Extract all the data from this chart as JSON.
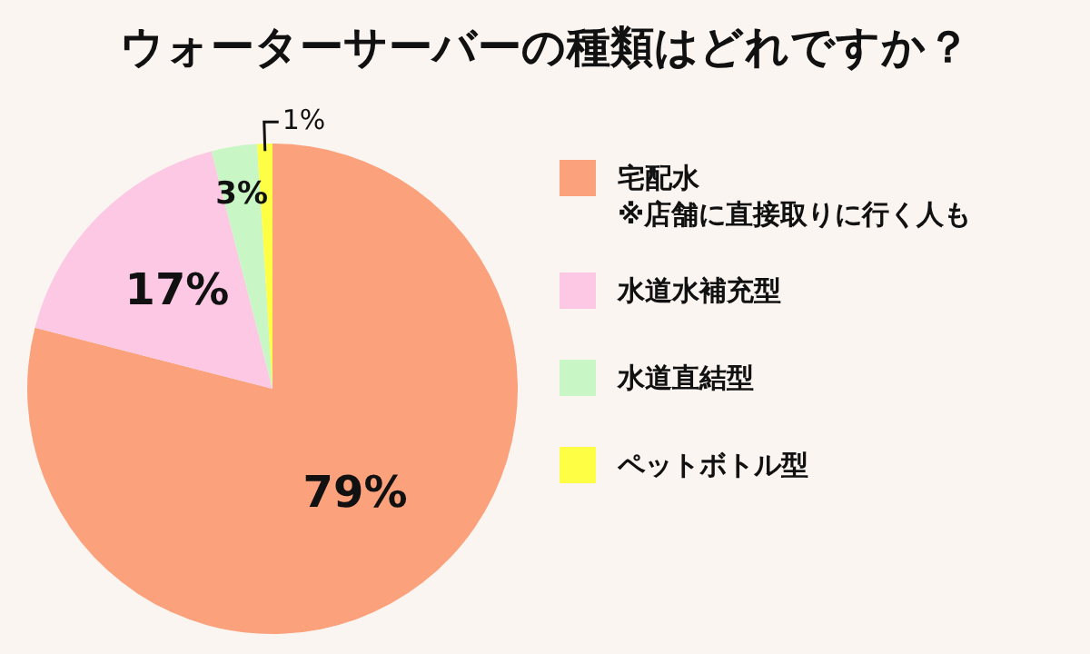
{
  "chart_data": {
    "type": "pie",
    "title": "ウォーターサーバーの種類はどれですか？",
    "categories": [
      "宅配水\n※店舗に直接取りに行く人も",
      "水道水補充型",
      "水道直結型",
      "ペットボトル型"
    ],
    "values": [
      79,
      17,
      3,
      1
    ],
    "value_labels": [
      "79%",
      "17%",
      "3%",
      "1%"
    ],
    "colors": [
      "#fba17c",
      "#fcc8e3",
      "#c8f7c5",
      "#fefe44"
    ],
    "legend": "right"
  }
}
